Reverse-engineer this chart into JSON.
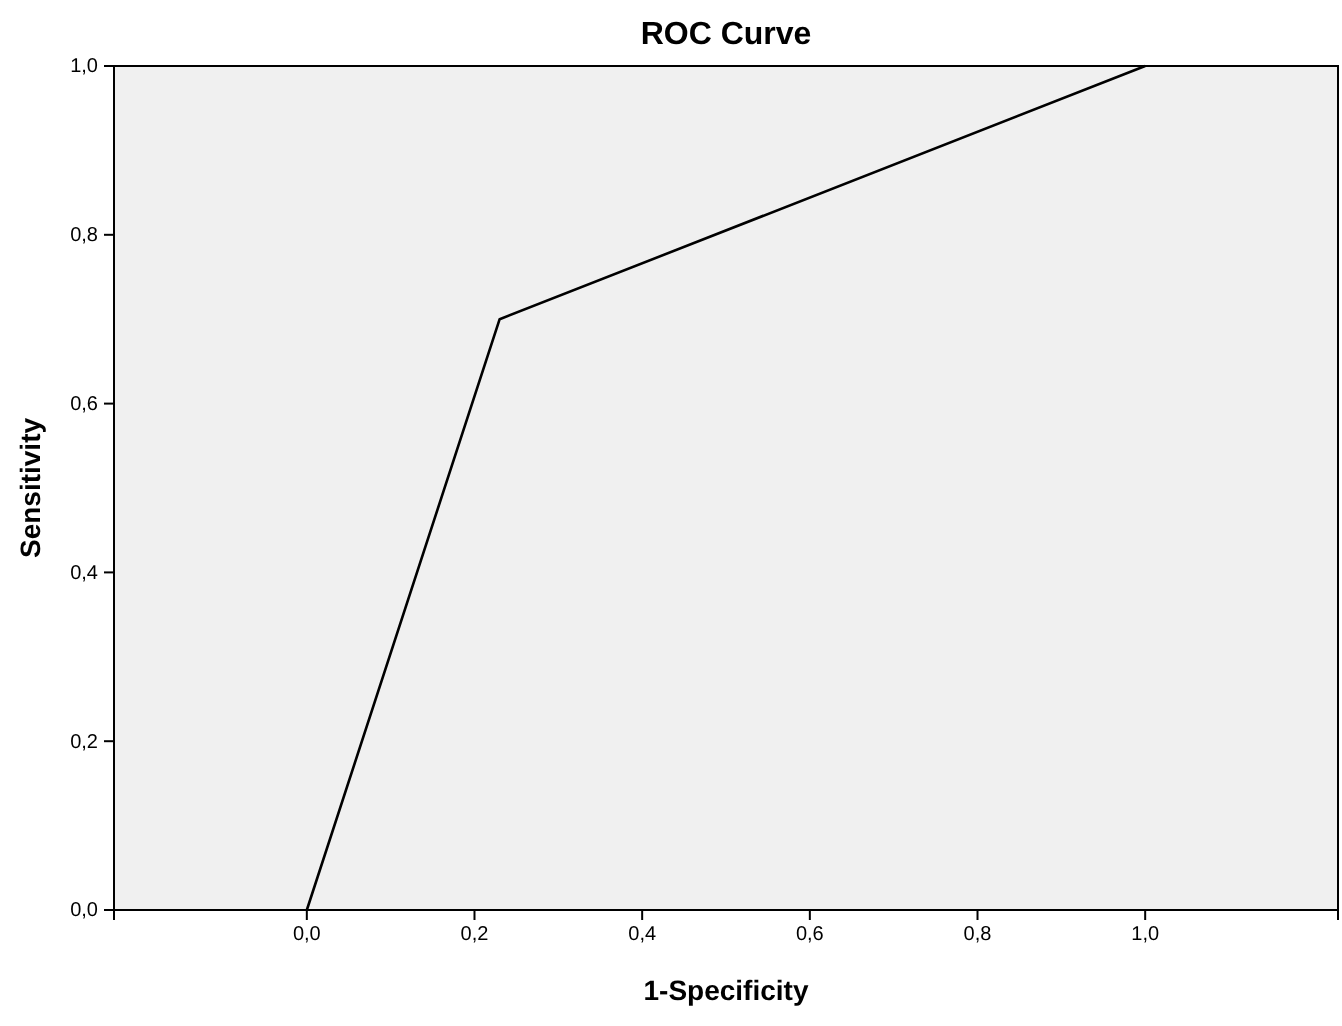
{
  "chart_data": {
    "type": "line",
    "title": "ROC Curve",
    "xlabel": "1-Specificity",
    "ylabel": "Sensitivity",
    "x": [
      0,
      0.23,
      1
    ],
    "series": [
      {
        "color": "#000000",
        "values": [
          0,
          0.7,
          1
        ]
      }
    ],
    "xlim": [
      -0.23,
      1.23
    ],
    "ylim": [
      0,
      1
    ],
    "xticks": [
      {
        "value": 0,
        "label": "0,0"
      },
      {
        "value": 0.2,
        "label": "0,2"
      },
      {
        "value": 0.4,
        "label": "0,4"
      },
      {
        "value": 0.6,
        "label": "0,6"
      },
      {
        "value": 0.8,
        "label": "0,8"
      },
      {
        "value": 1,
        "label": "1,0"
      }
    ],
    "yticks": [
      {
        "value": 0,
        "label": "0,0"
      },
      {
        "value": 0.2,
        "label": "0,2"
      },
      {
        "value": 0.4,
        "label": "0,4"
      },
      {
        "value": 0.6,
        "label": "0,6"
      },
      {
        "value": 0.8,
        "label": "0,8"
      },
      {
        "value": 1,
        "label": "1,0"
      }
    ],
    "grid": false,
    "marker": "none",
    "line_style": "solid"
  }
}
